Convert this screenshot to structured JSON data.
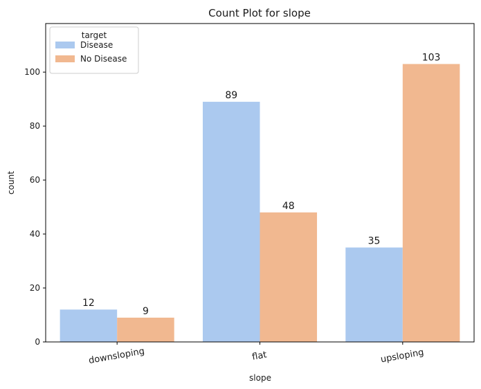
{
  "chart_data": {
    "type": "bar",
    "title": "Count Plot for slope",
    "xlabel": "slope",
    "ylabel": "count",
    "categories": [
      "downsloping",
      "flat",
      "upsloping"
    ],
    "series": [
      {
        "name": "Disease",
        "values": [
          12,
          89,
          35
        ],
        "color": "#abc9ef"
      },
      {
        "name": "No Disease",
        "values": [
          9,
          48,
          103
        ],
        "color": "#f1b890"
      }
    ],
    "ylim": [
      0,
      118
    ],
    "yticks": [
      0,
      20,
      40,
      60,
      80,
      100
    ],
    "grid": false,
    "legend": {
      "title": "target",
      "placement": "top-left"
    },
    "bar_labels": true,
    "xtick_rotation": -10
  }
}
